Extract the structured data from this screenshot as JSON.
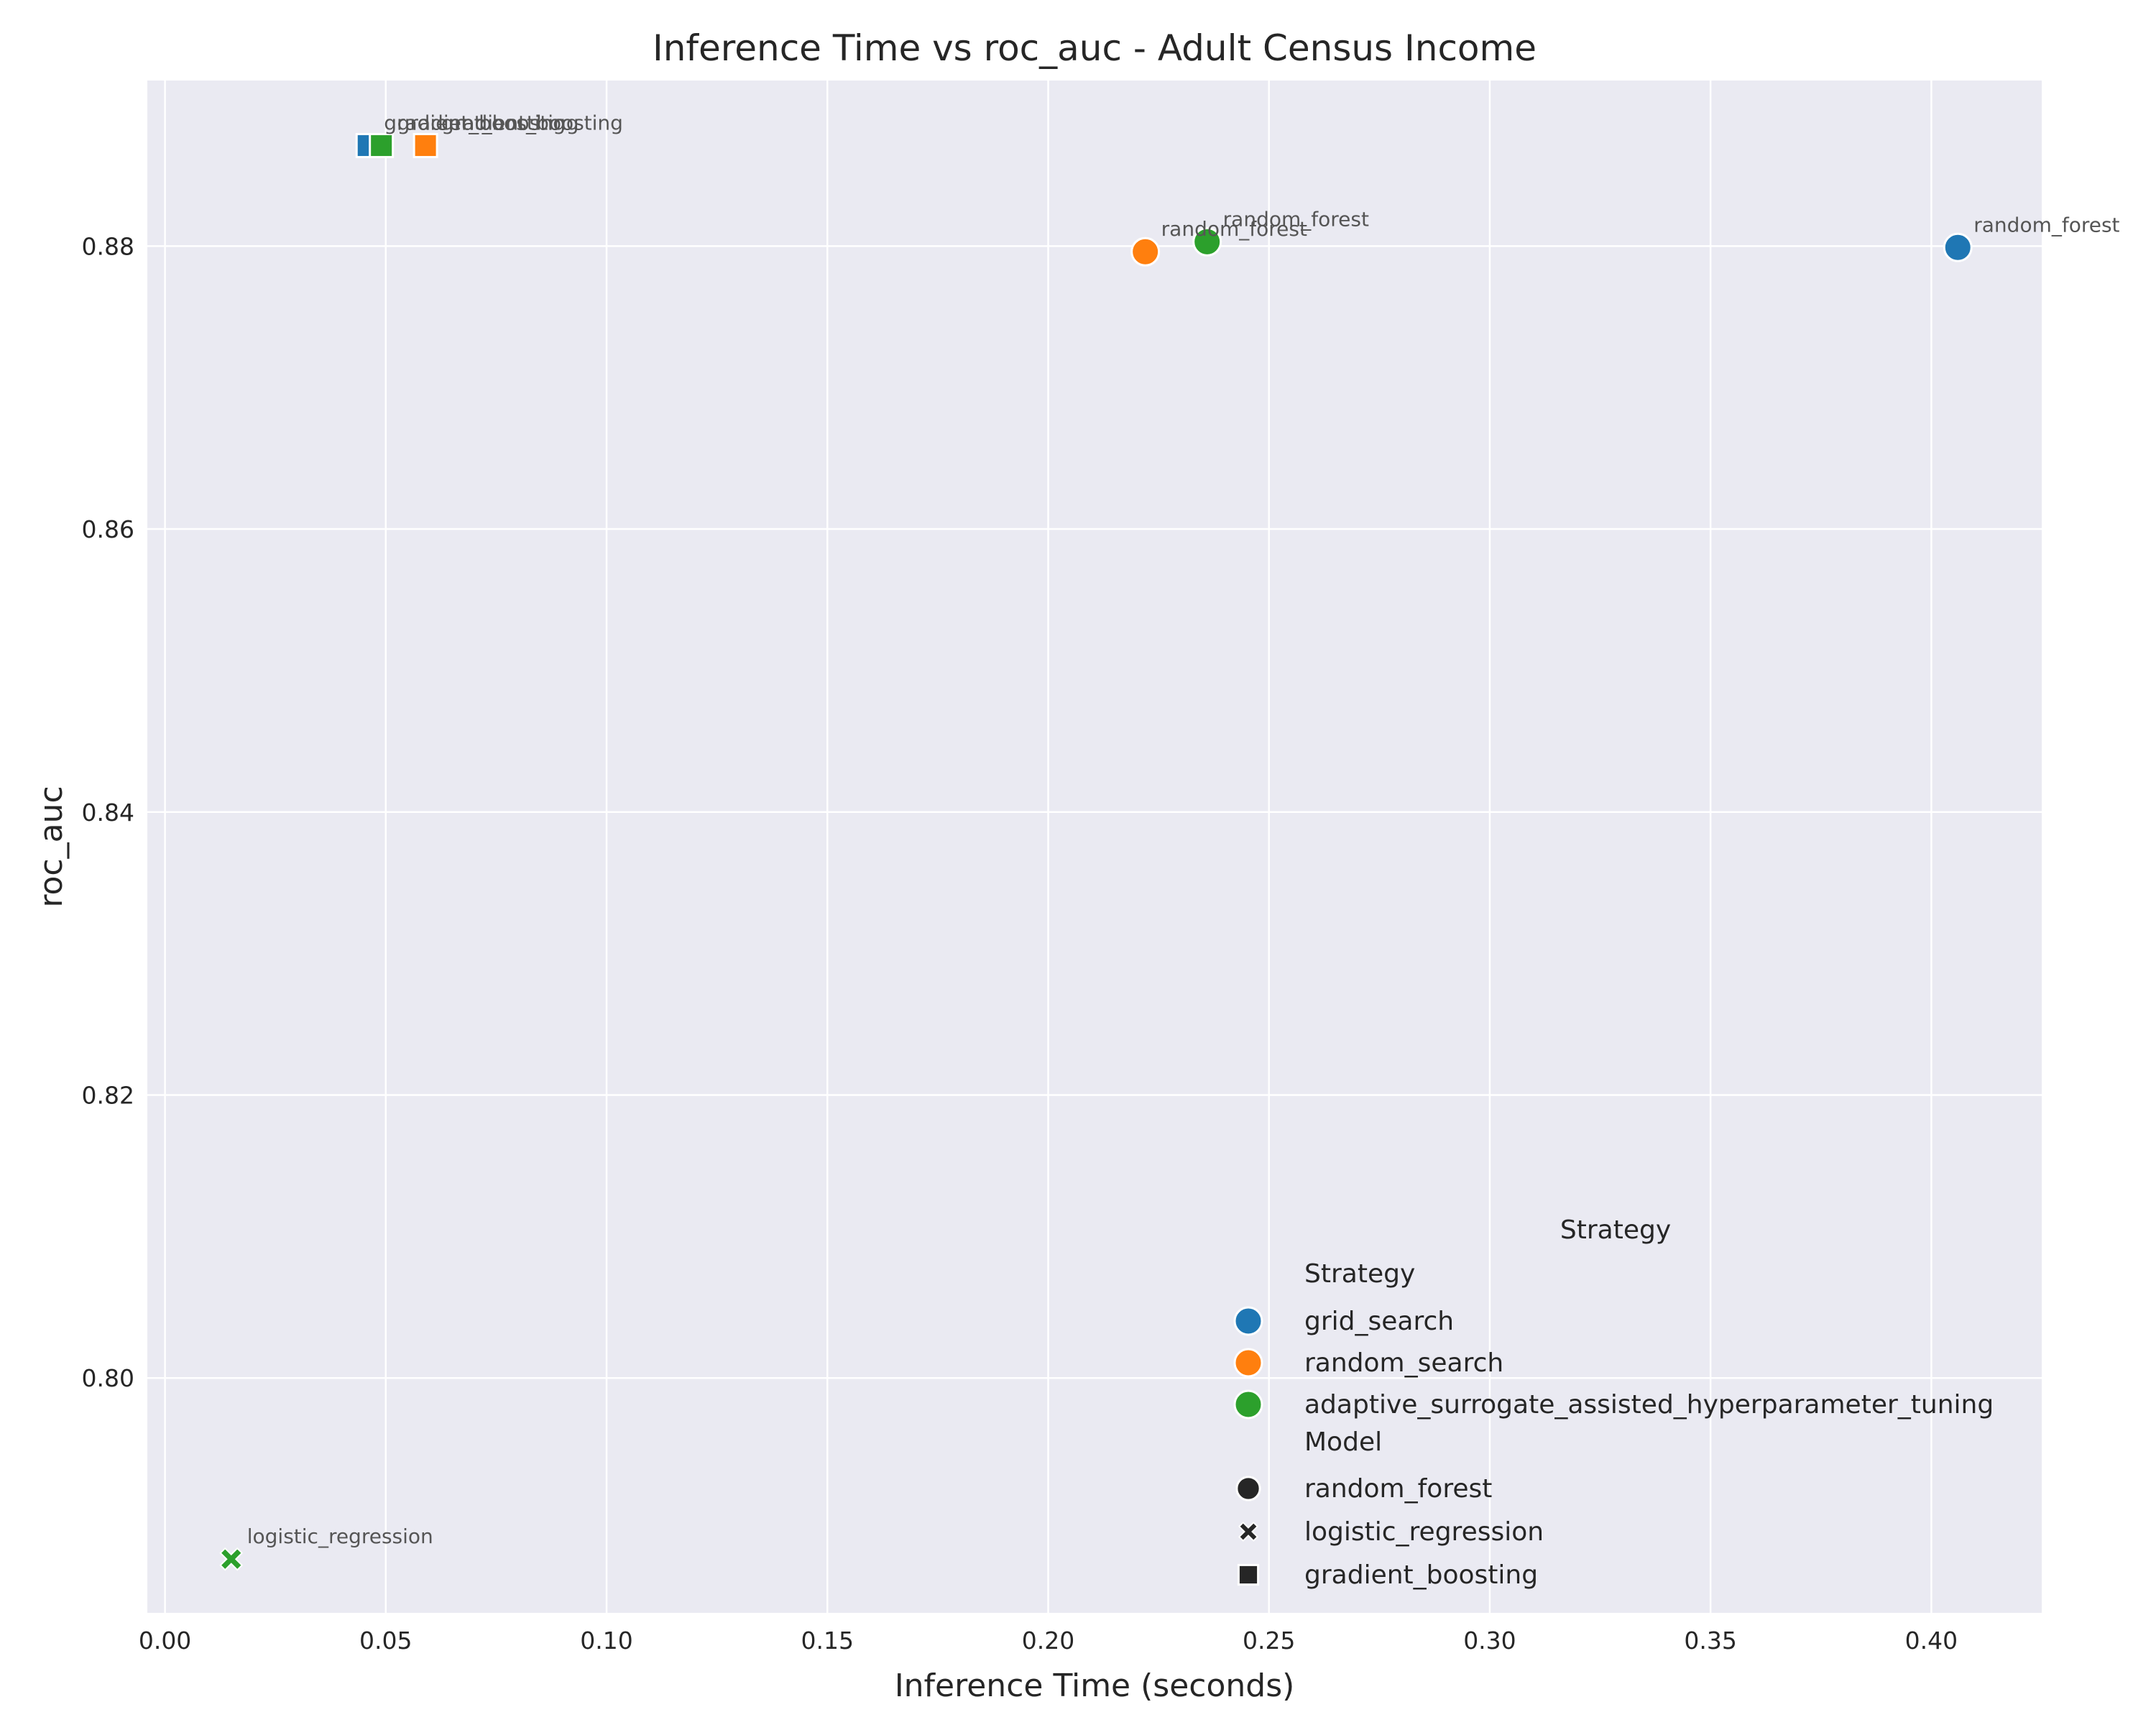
{
  "chart_data": {
    "type": "scatter",
    "title": "Inference Time vs roc_auc - Adult Census Income",
    "xlabel": "Inference Time (seconds)",
    "ylabel": "roc_auc",
    "xlim": [
      -0.004,
      0.425
    ],
    "ylim": [
      0.7834,
      0.8917
    ],
    "xticks": [
      0.0,
      0.05,
      0.1,
      0.15,
      0.2,
      0.25,
      0.3,
      0.35,
      0.4
    ],
    "xtick_labels": [
      "0.00",
      "0.05",
      "0.10",
      "0.15",
      "0.20",
      "0.25",
      "0.30",
      "0.35",
      "0.40"
    ],
    "yticks": [
      0.8,
      0.82,
      0.84,
      0.86,
      0.88
    ],
    "ytick_labels": [
      "0.80",
      "0.82",
      "0.84",
      "0.86",
      "0.88"
    ],
    "grid": true,
    "background": "#eaeaf2",
    "series": [
      {
        "name": "grid_search",
        "color": "#1f77b4",
        "points": [
          {
            "model": "random_forest",
            "x": 0.406,
            "y": 0.8799
          },
          {
            "model": "gradient_boosting",
            "x": 0.046,
            "y": 0.8871
          }
        ]
      },
      {
        "name": "random_search",
        "color": "#ff7f0e",
        "points": [
          {
            "model": "random_forest",
            "x": 0.222,
            "y": 0.8796
          },
          {
            "model": "gradient_boosting",
            "x": 0.059,
            "y": 0.8871
          }
        ]
      },
      {
        "name": "adaptive_surrogate_assisted_hyperparameter_tuning",
        "color": "#2ca02c",
        "points": [
          {
            "model": "random_forest",
            "x": 0.236,
            "y": 0.8803
          },
          {
            "model": "logistic_regression",
            "x": 0.015,
            "y": 0.7872
          },
          {
            "model": "gradient_boosting",
            "x": 0.049,
            "y": 0.8871
          }
        ]
      }
    ],
    "markers": {
      "random_forest": "circle",
      "logistic_regression": "x",
      "gradient_boosting": "square"
    },
    "legend": {
      "placement": "lower-right",
      "outer_title": "Strategy",
      "strategy_header": "Strategy",
      "strategy_items": [
        "grid_search",
        "random_search",
        "adaptive_surrogate_assisted_hyperparameter_tuning"
      ],
      "model_header": "Model",
      "model_items": [
        "random_forest",
        "logistic_regression",
        "gradient_boosting"
      ],
      "marker_color": "#262626"
    }
  }
}
